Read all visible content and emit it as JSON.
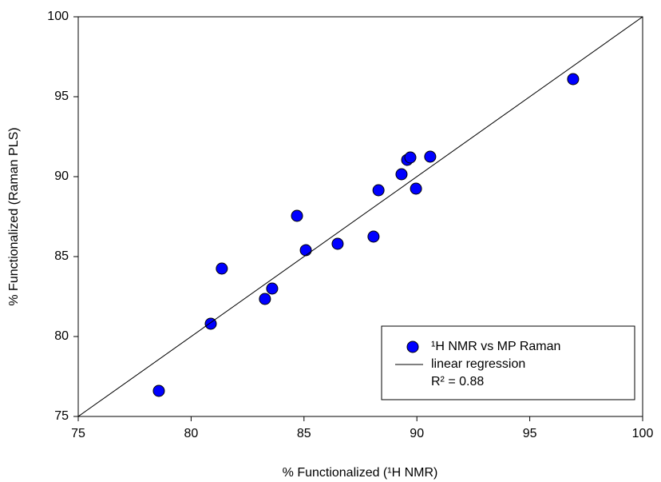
{
  "chart_data": {
    "type": "scatter",
    "x_label": "% Functionalized (¹H NMR)",
    "y_label": "% Functionalized (Raman PLS)",
    "xlim": [
      75,
      100
    ],
    "ylim": [
      75,
      100
    ],
    "xticks": [
      75,
      80,
      85,
      90,
      95,
      100
    ],
    "yticks": [
      75,
      80,
      85,
      90,
      95,
      100
    ],
    "series": [
      {
        "name": "¹H NMR vs MP Raman",
        "color": "#0000ff",
        "type": "scatter",
        "x": [
          78.57,
          80.87,
          81.36,
          83.27,
          83.59,
          84.69,
          85.08,
          86.49,
          88.08,
          88.3,
          89.32,
          89.57,
          89.71,
          89.96,
          90.59,
          96.92
        ],
        "values": [
          76.6,
          80.8,
          84.25,
          82.35,
          83.0,
          87.55,
          85.4,
          85.8,
          86.25,
          89.15,
          90.15,
          91.05,
          91.2,
          89.25,
          91.25,
          96.1
        ]
      },
      {
        "name": "linear regression",
        "color": "#000000",
        "type": "line",
        "x": [
          75,
          100
        ],
        "values": [
          75,
          100
        ]
      }
    ],
    "annotation": "R² = 0.88",
    "legend": "lower right"
  }
}
